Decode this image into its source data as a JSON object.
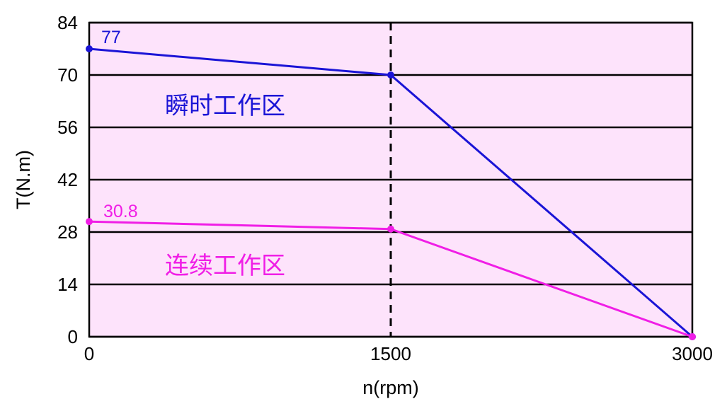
{
  "chart_data": {
    "type": "line",
    "xlabel": "n(rpm)",
    "ylabel": "T(N.m)",
    "xlim": [
      0,
      3000
    ],
    "ylim": [
      0,
      84
    ],
    "x_ticks": [
      "0",
      "1500",
      "3000"
    ],
    "y_ticks": [
      "0",
      "14",
      "28",
      "42",
      "56",
      "70",
      "84"
    ],
    "grid": "horizontal",
    "reference_line": {
      "x": 1500,
      "style": "dashed"
    },
    "background": "#fde3fb",
    "series": [
      {
        "color": "#1a14d6",
        "x": [
          0,
          1500,
          3000
        ],
        "y": [
          77,
          70,
          0
        ],
        "point_label": "77",
        "region_label": "瞬时工作区"
      },
      {
        "color": "#f01ee6",
        "x": [
          0,
          1500,
          3000
        ],
        "y": [
          30.8,
          28.8,
          0
        ],
        "point_label": "30.8",
        "region_label": "连续工作区"
      }
    ]
  }
}
